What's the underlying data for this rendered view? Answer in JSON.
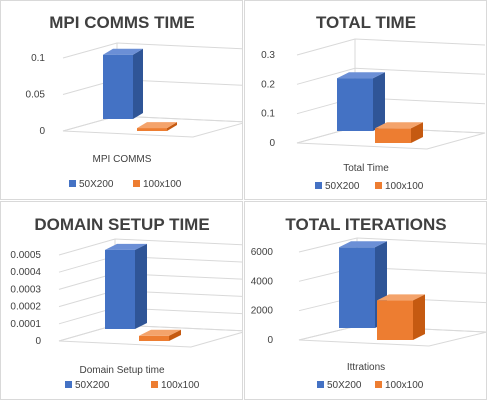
{
  "chart_data": [
    {
      "type": "bar",
      "title": "MPI COMMS TIME",
      "categories": [
        "MPI COMMS"
      ],
      "xlabel": "MPI COMMS",
      "ylabel": "",
      "ylim": [
        0,
        0.1
      ],
      "yticks": [
        "0.1",
        "0.05",
        "0"
      ],
      "ytick_values": [
        0.1,
        0.05,
        0
      ],
      "series": [
        {
          "name": "50X200",
          "values": [
            0.088
          ]
        },
        {
          "name": "100x100",
          "values": [
            0.004
          ]
        }
      ],
      "legend": "bottom",
      "grid": true
    },
    {
      "type": "bar",
      "title": "TOTAL TIME",
      "categories": [
        "Total Time"
      ],
      "xlabel": "Total Time",
      "ylabel": "",
      "ylim": [
        0,
        0.3
      ],
      "yticks": [
        "0.3",
        "0.2",
        "0.1",
        "0"
      ],
      "ytick_values": [
        0.3,
        0.2,
        0.1,
        0
      ],
      "series": [
        {
          "name": "50X200",
          "values": [
            0.18
          ]
        },
        {
          "name": "100x100",
          "values": [
            0.05
          ]
        }
      ],
      "legend": "bottom",
      "grid": true
    },
    {
      "type": "bar",
      "title": "DOMAIN SETUP TIME",
      "categories": [
        "Domain Setup time"
      ],
      "xlabel": "Domain Setup time",
      "ylabel": "",
      "ylim": [
        0,
        0.0005
      ],
      "yticks": [
        "0.0005",
        "0.0004",
        "0.0003",
        "0.0002",
        "0.0001",
        "0"
      ],
      "ytick_values": [
        0.0005,
        0.0004,
        0.0003,
        0.0002,
        0.0001,
        0
      ],
      "series": [
        {
          "name": "50X200",
          "values": [
            0.00046
          ]
        },
        {
          "name": "100x100",
          "values": [
            3e-05
          ]
        }
      ],
      "legend": "bottom",
      "grid": true
    },
    {
      "type": "bar",
      "title": "TOTAL ITERATIONS",
      "categories": [
        "Ittrations"
      ],
      "xlabel": "Ittrations",
      "ylabel": "",
      "ylim": [
        0,
        6000
      ],
      "yticks": [
        "6000",
        "4000",
        "2000",
        "0"
      ],
      "ytick_values": [
        6000,
        4000,
        2000,
        0
      ],
      "series": [
        {
          "name": "50X200",
          "values": [
            5500
          ]
        },
        {
          "name": "100x100",
          "values": [
            2700
          ]
        }
      ],
      "legend": "bottom",
      "grid": true
    }
  ],
  "colors": {
    "series_1": "#4472c4",
    "series_1_side": "#2f5597",
    "series_1_top": "#6b8fd6",
    "series_2": "#ed7d31",
    "series_2_side": "#c55a11",
    "series_2_top": "#f4a36b",
    "grid": "#d9d9d9",
    "text": "#404040"
  }
}
